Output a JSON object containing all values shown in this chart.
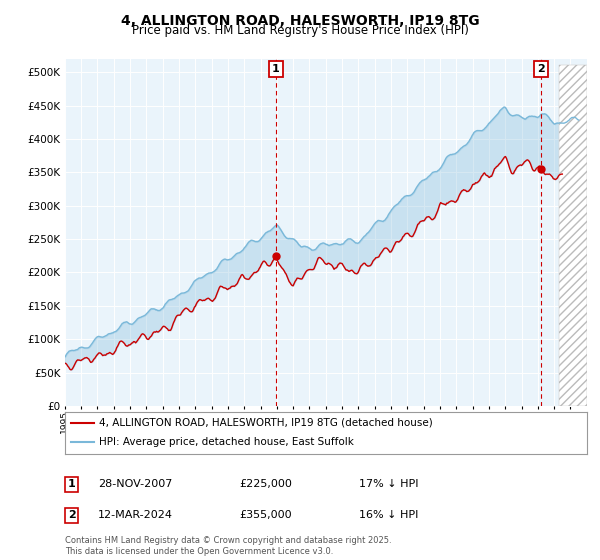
{
  "title": "4, ALLINGTON ROAD, HALESWORTH, IP19 8TG",
  "subtitle": "Price paid vs. HM Land Registry's House Price Index (HPI)",
  "ytick_values": [
    0,
    50000,
    100000,
    150000,
    200000,
    250000,
    300000,
    350000,
    400000,
    450000,
    500000
  ],
  "ylim": [
    0,
    520000
  ],
  "xlim_start": 1995,
  "xlim_end": 2027,
  "hpi_color": "#7ab8d9",
  "price_color": "#cc0000",
  "fill_color": "#d6eaf8",
  "hatch_color": "#dddddd",
  "marker1_year": 2007.92,
  "marker1_price": 225000,
  "marker2_year": 2024.19,
  "marker2_price": 355000,
  "annotation1": "1",
  "annotation2": "2",
  "legend_price_label": "4, ALLINGTON ROAD, HALESWORTH, IP19 8TG (detached house)",
  "legend_hpi_label": "HPI: Average price, detached house, East Suffolk",
  "background_color": "#ffffff",
  "chart_bg_color": "#eaf4fb",
  "grid_color": "#ffffff",
  "hpi_linewidth": 1.0,
  "price_linewidth": 1.0
}
